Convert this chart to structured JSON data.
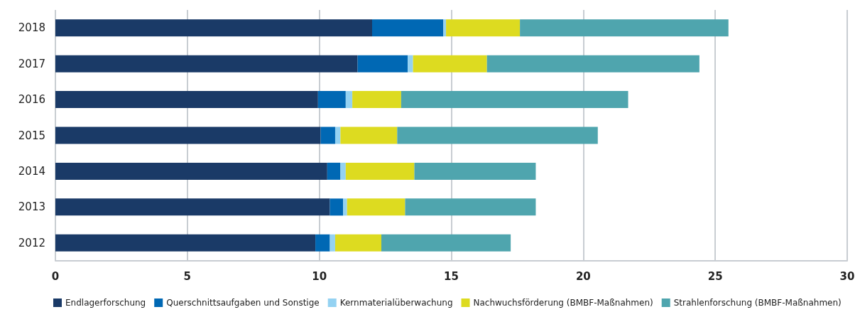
{
  "chart_data": {
    "type": "bar",
    "orientation": "horizontal",
    "stacked": true,
    "categories": [
      "2018",
      "2017",
      "2016",
      "2015",
      "2014",
      "2013",
      "2012"
    ],
    "series": [
      {
        "name": "Endlagerforschung",
        "color": "#1a3a67",
        "values": [
          12.0,
          11.45,
          9.95,
          10.05,
          10.3,
          10.4,
          9.85
        ]
      },
      {
        "name": "Querschnittsaufgaben und Sonstige",
        "color": "#0068b4",
        "values": [
          2.7,
          1.9,
          1.05,
          0.55,
          0.5,
          0.5,
          0.55
        ]
      },
      {
        "name": "Kernmaterialüberwachung",
        "color": "#94d2f2",
        "values": [
          0.1,
          0.2,
          0.25,
          0.2,
          0.2,
          0.15,
          0.2
        ]
      },
      {
        "name": "Nachwuchsförderung (BMBF-Maßnahmen)",
        "color": "#dddb20",
        "values": [
          2.8,
          2.8,
          1.85,
          2.15,
          2.6,
          2.2,
          1.75
        ]
      },
      {
        "name": "Strahlenforschung (BMBF-Maßnahmen)",
        "color": "#4fa5ae",
        "values": [
          7.9,
          8.05,
          8.6,
          7.6,
          4.6,
          4.95,
          4.9
        ]
      }
    ],
    "xlim": [
      0,
      30
    ],
    "xticks": [
      0,
      5,
      10,
      15,
      20,
      25,
      30
    ],
    "grid": "x",
    "legend": "bottom"
  }
}
